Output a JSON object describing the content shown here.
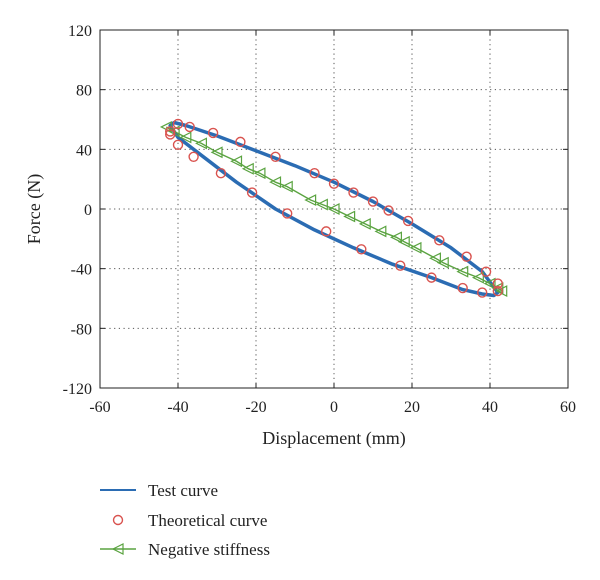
{
  "chart_data": {
    "type": "line",
    "xlabel": "Displacement (mm)",
    "ylabel": "Force (N)",
    "xlim": [
      -60,
      60
    ],
    "ylim": [
      -120,
      120
    ],
    "x_ticks": [
      -60,
      -40,
      -20,
      0,
      20,
      40,
      60
    ],
    "y_ticks": [
      120,
      80,
      40,
      0,
      -40,
      -80,
      -120
    ],
    "x_tick_labels": [
      "-60",
      "-40",
      "-20",
      "0",
      "20",
      "40",
      "60"
    ],
    "y_tick_labels": [
      "120",
      "80",
      "40",
      "0",
      "-40",
      "-80",
      "-120"
    ],
    "grid": "dotted",
    "legend_position": "below-left",
    "series": [
      {
        "name": "Test curve",
        "style": "line",
        "color": "#2b6cb3",
        "x": [
          42.0,
          38.0,
          30.0,
          20.0,
          10.0,
          0.0,
          -10.0,
          -20.0,
          -30.0,
          -38.0,
          -41.0,
          -42.0,
          -40.0,
          -35.0,
          -25.0,
          -15.0,
          -5.0,
          5.0,
          15.0,
          25.0,
          33.0,
          38.0,
          41.0,
          42.0
        ],
        "y": [
          -56.0,
          -42.0,
          -26.0,
          -10.0,
          5.0,
          18.0,
          29.0,
          39.0,
          49.0,
          56.0,
          58.0,
          56.0,
          48.0,
          38.0,
          18.0,
          0.0,
          -14.0,
          -26.0,
          -37.0,
          -46.0,
          -54.0,
          -57.0,
          -58.0,
          -56.0
        ]
      },
      {
        "name": "Theoretical curve",
        "style": "markers",
        "marker": "circle",
        "color": "#d9534f",
        "x": [
          -42.0,
          -40.0,
          -37.0,
          -31.0,
          -24.0,
          -15.0,
          -5.0,
          0.0,
          5.0,
          10.0,
          14.0,
          19.0,
          27.0,
          34.0,
          39.0,
          42.0,
          42.0,
          38.0,
          33.0,
          25.0,
          17.0,
          7.0,
          -2.0,
          -12.0,
          -21.0,
          -29.0,
          -36.0,
          -40.0,
          -42.0
        ],
        "y": [
          52.0,
          57.0,
          55.0,
          51.0,
          45.0,
          35.0,
          24.0,
          17.0,
          11.0,
          5.0,
          -1.0,
          -8.0,
          -21.0,
          -32.0,
          -42.0,
          -50.0,
          -55.0,
          -56.0,
          -53.0,
          -46.0,
          -38.0,
          -27.0,
          -15.0,
          -3.0,
          11.0,
          24.0,
          35.0,
          43.0,
          50.0
        ]
      },
      {
        "name": "Negative stiffness",
        "style": "line-markers",
        "marker": "triangle-left",
        "color": "#5aa340",
        "x": [
          -43.0,
          -41.0,
          -38.0,
          -34.0,
          -30.0,
          -25.0,
          -22.0,
          -19.0,
          -15.0,
          -12.0,
          -6.0,
          -3.0,
          0.0,
          4.0,
          8.0,
          12.0,
          16.0,
          18.0,
          21.0,
          26.0,
          28.0,
          33.0,
          37.0,
          40.0,
          42.0,
          43.0
        ],
        "y": [
          55.0,
          52.0,
          48.0,
          44.0,
          38.0,
          32.0,
          27.0,
          24.0,
          18.0,
          15.0,
          6.0,
          3.0,
          0.0,
          -5.0,
          -10.0,
          -15.0,
          -19.0,
          -22.0,
          -26.0,
          -33.0,
          -36.0,
          -42.0,
          -46.0,
          -50.0,
          -53.0,
          -55.0
        ]
      }
    ]
  }
}
